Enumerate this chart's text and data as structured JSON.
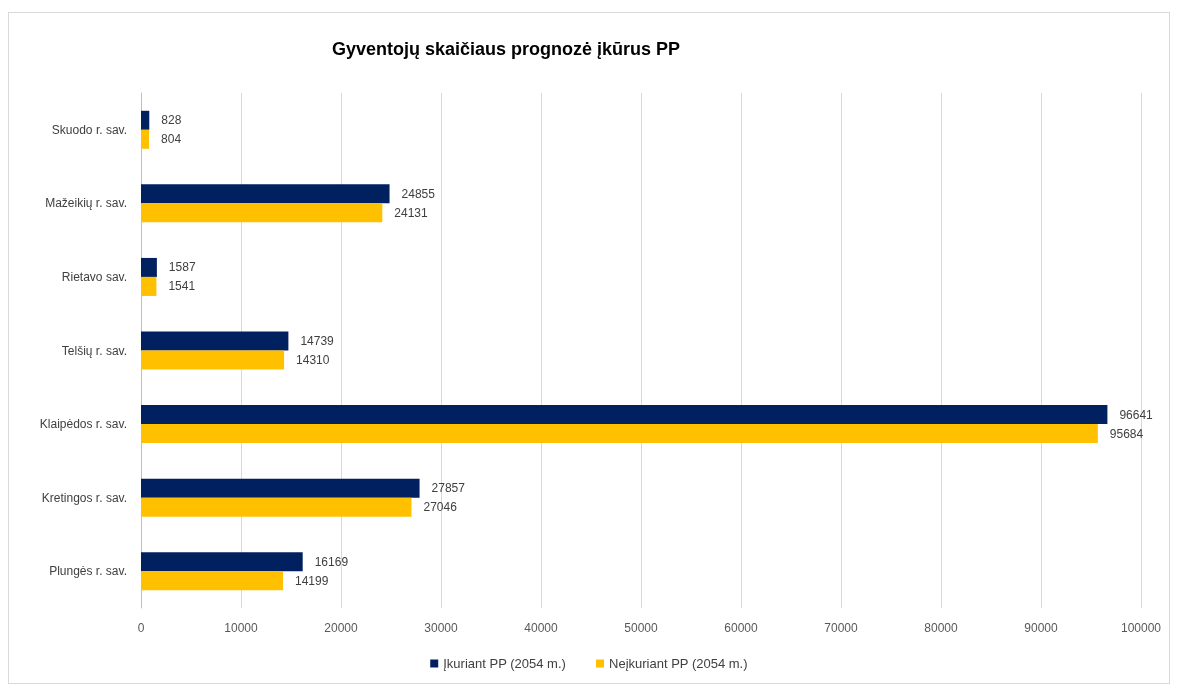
{
  "chart_data": {
    "type": "bar",
    "orientation": "horizontal",
    "title": "Gyventojų skaičiaus prognozė įkūrus PP",
    "categories": [
      "Skuodo r. sav.",
      "Mažeikių r. sav.",
      "Rietavo sav.",
      "Telšių r. sav.",
      "Klaipėdos r. sav.",
      "Kretingos r. sav.",
      "Plungės r. sav."
    ],
    "series": [
      {
        "name": "Įkuriant PP (2054 m.)",
        "color": "#002060",
        "values": [
          828,
          24855,
          1587,
          14739,
          96641,
          27857,
          16169
        ]
      },
      {
        "name": "Neįkuriant PP (2054 m.)",
        "color": "#ffc000",
        "values": [
          804,
          24131,
          1541,
          14310,
          95684,
          27046,
          14199
        ]
      }
    ],
    "xlim": [
      0,
      100000
    ],
    "xticks": [
      0,
      10000,
      20000,
      30000,
      40000,
      50000,
      60000,
      70000,
      80000,
      90000,
      100000
    ],
    "grid": "x",
    "legend": "bottom",
    "data_labels": true
  }
}
